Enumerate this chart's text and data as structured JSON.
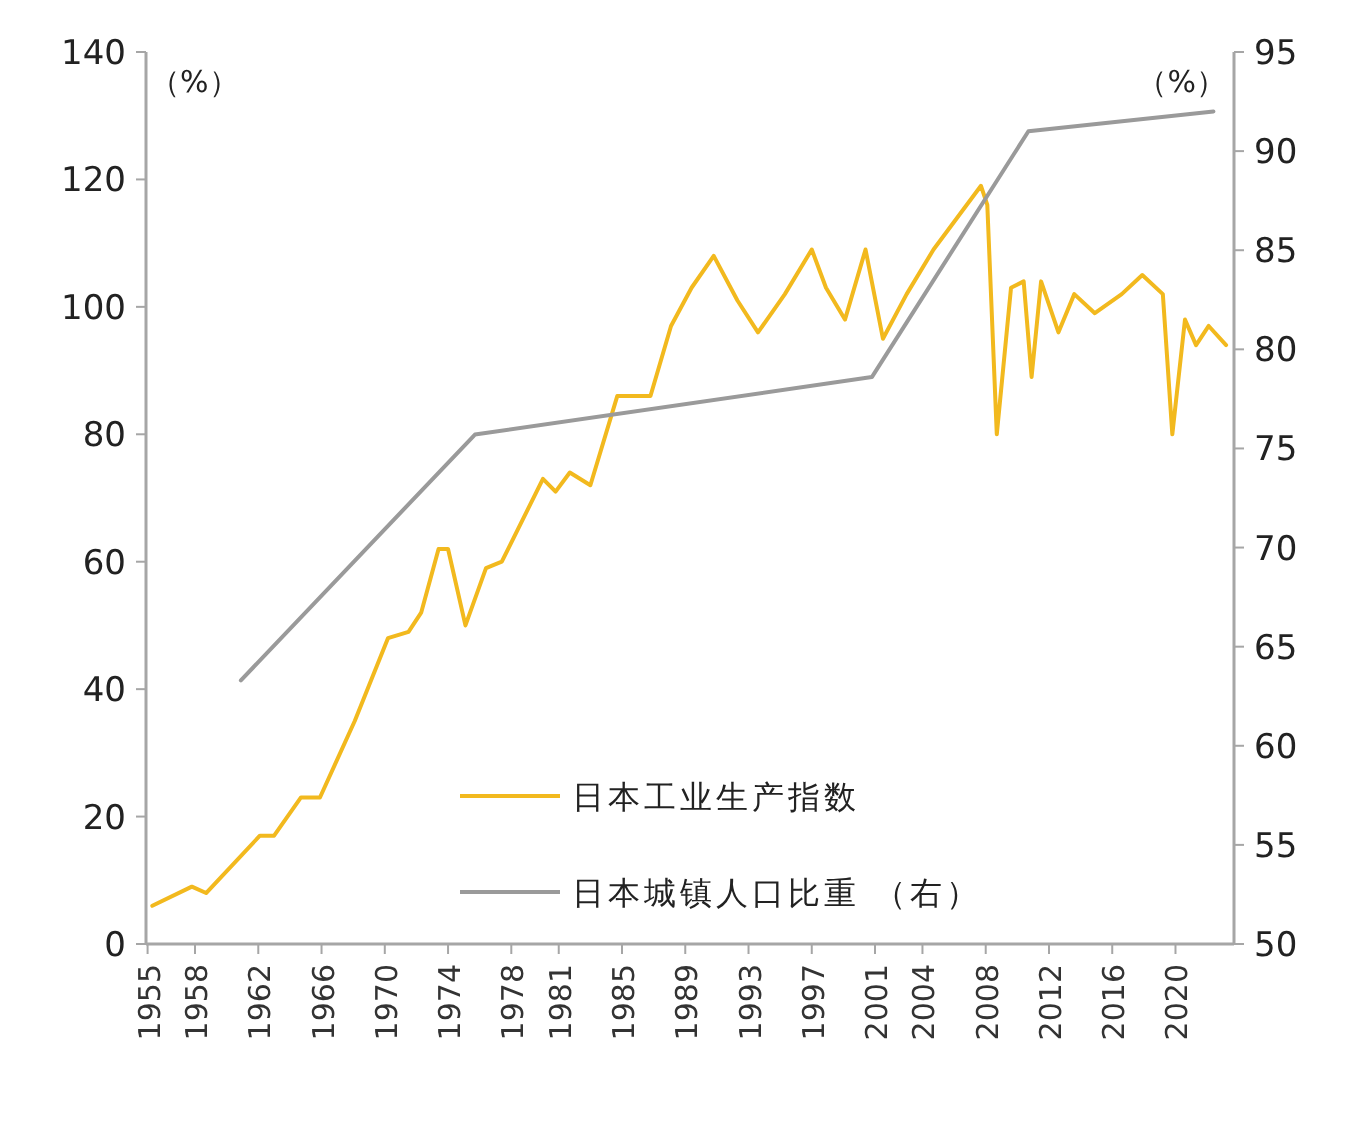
{
  "chart_data": {
    "type": "line",
    "xlim": [
      1954.9,
      2023.7
    ],
    "xticks": [
      1955,
      1958,
      1962,
      1966,
      1970,
      1974,
      1978,
      1981,
      1985,
      1989,
      1993,
      1997,
      2001,
      2004,
      2008,
      2012,
      2016,
      2020
    ],
    "ylim": [
      0,
      140
    ],
    "yticks": [
      0,
      20,
      40,
      60,
      80,
      100,
      120,
      140
    ],
    "y2lim": [
      50,
      95
    ],
    "y2ticks": [
      50,
      55,
      60,
      65,
      70,
      75,
      80,
      85,
      90,
      95
    ],
    "ylabel": "（%）",
    "y2label": "（%）",
    "legend": "bottom",
    "grid": false,
    "series": [
      {
        "name": "日本工业生产指数",
        "color": "#f2b91e",
        "x": [
          1955.3,
          1957.8,
          1958.7,
          1962.1,
          1963.0,
          1964.7,
          1965.9,
          1968.1,
          1970.2,
          1971.5,
          1972.3,
          1973.4,
          1974.0,
          1975.1,
          1976.4,
          1977.4,
          1980.0,
          1980.8,
          1981.7,
          1983.0,
          1984.7,
          1986.8,
          1988.1,
          1989.4,
          1990.8,
          1992.3,
          1993.6,
          1995.3,
          1997.0,
          1997.9,
          1999.1,
          2000.4,
          2001.5,
          2003.0,
          2004.7,
          2005.9,
          2007.7,
          2008.1,
          2008.7,
          2009.6,
          2010.4,
          2010.9,
          2011.5,
          2012.6,
          2013.6,
          2014.9,
          2016.6,
          2017.9,
          2019.2,
          2019.8,
          2020.6,
          2021.3,
          2022.1,
          2023.2
        ],
        "values": [
          6,
          9,
          8,
          17,
          17,
          23,
          23,
          35,
          48,
          49,
          52,
          62,
          62,
          50,
          59,
          60,
          73,
          71,
          74,
          72,
          86,
          86,
          97,
          103,
          108,
          101,
          96,
          102,
          109,
          103,
          98,
          109,
          95,
          102,
          109,
          113,
          119,
          116,
          80,
          103,
          104,
          89,
          104,
          96,
          102,
          99,
          102,
          105,
          102,
          80,
          98,
          94,
          97,
          94
        ]
      },
      {
        "name": "日本城镇人口比重 （右）",
        "color": "#9a9a9a",
        "axis": "y2",
        "x": [
          1960.9,
          1975.7,
          2000.8,
          2010.7,
          2022.4
        ],
        "values": [
          63.3,
          75.7,
          78.6,
          91.0,
          92.0
        ]
      }
    ]
  }
}
